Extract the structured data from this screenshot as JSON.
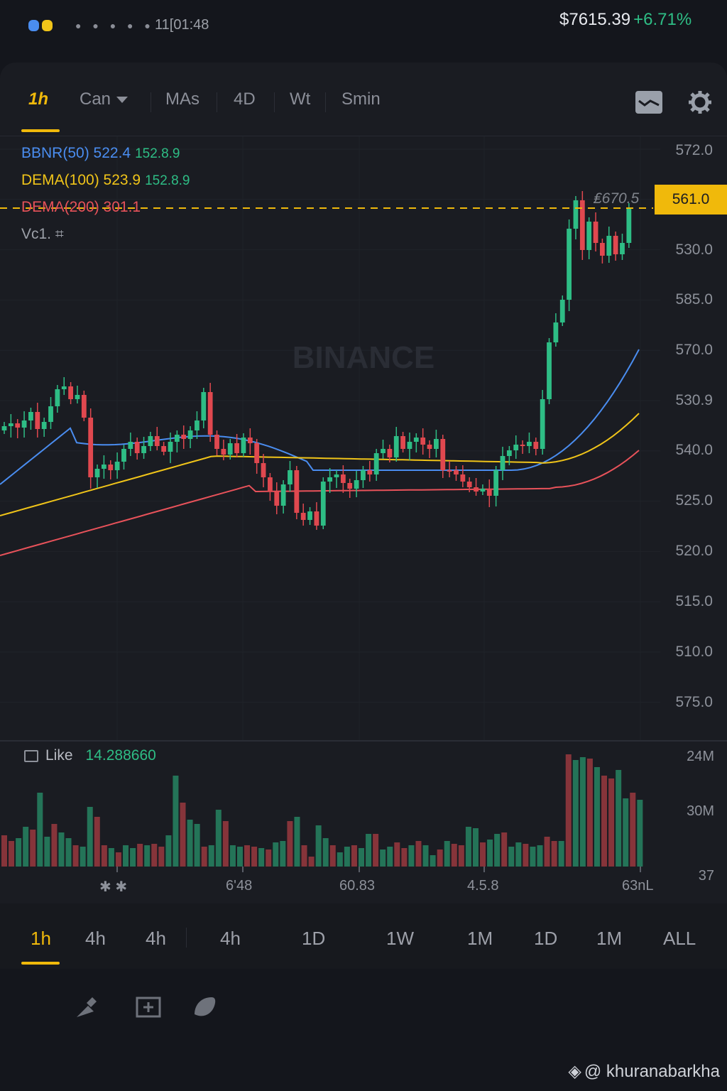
{
  "status": {
    "signal_dots": "● ● ● ● ●",
    "time": "11[01:48",
    "price": "$7615.39",
    "change": "+6.71%"
  },
  "tabs": [
    {
      "label": "1h",
      "active": true
    },
    {
      "label": "Can"
    },
    {
      "label": "MAs"
    },
    {
      "label": "4D"
    },
    {
      "label": "Wt"
    },
    {
      "label": "Smin"
    }
  ],
  "tab_icons": [
    "chart-style-icon",
    "gear-icon"
  ],
  "indicators": [
    {
      "name": "BBNR(50)",
      "value": "522.4",
      "value2": "152.8.9",
      "color": "#4a8df0"
    },
    {
      "name": "DEMA(100)",
      "value": "523.9",
      "value2": "152.8.9",
      "color": "#f0c419"
    },
    {
      "name": "DEMA(200)",
      "value": "301.1",
      "color": "#e8525a"
    },
    {
      "name": "Vc1.",
      "value": "⌗",
      "color": "#9ca0a8"
    }
  ],
  "price_axis": [
    "572.0",
    "561.0",
    "530.0",
    "585.0",
    "570.0",
    "530.9",
    "540.0",
    "525.0",
    "520.0",
    "515.0",
    "510.0",
    "575.0"
  ],
  "last_price": "561.0",
  "hover_price": "₤670.5",
  "watermark": "BINANCE",
  "volume": {
    "label": "Like",
    "value": "14.288660",
    "axis": [
      "24M",
      "30M",
      "37"
    ]
  },
  "x_axis": [
    "✱ ✱",
    "6'48",
    "60.83",
    "4.5.8",
    "63nL"
  ],
  "timeframes": [
    {
      "label": "1h",
      "active": true
    },
    {
      "label": "4h"
    },
    {
      "label": "4h"
    },
    {
      "label": "4h"
    },
    {
      "label": "1D"
    },
    {
      "label": "1W"
    },
    {
      "label": "1M"
    },
    {
      "label": "1D"
    },
    {
      "label": "1M"
    },
    {
      "label": "ALL"
    }
  ],
  "tool_icons": [
    "drawing-tool-icon",
    "add-indicator-icon",
    "favorite-icon"
  ],
  "credit": "@ khuranabarkha",
  "colors": {
    "up": "#2ebd85",
    "down": "#e0484f",
    "accent": "#f0b90b",
    "ma_blue": "#4a8df0",
    "ma_yellow": "#f0c419",
    "ma_red": "#e8525a"
  }
}
